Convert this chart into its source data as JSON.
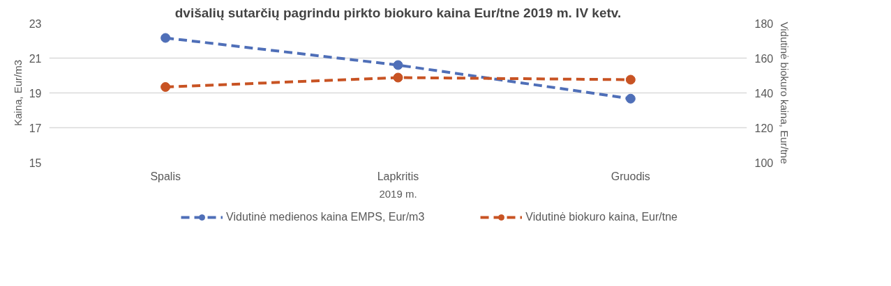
{
  "chart_data": {
    "type": "line",
    "title": "dvišalių sutarčių pagrindu pirkto biokuro kaina Eur/tne 2019 m. IV ketv.",
    "categories": [
      "Spalis",
      "Lapkritis",
      "Gruodis"
    ],
    "xlabel": "2019 m.",
    "ylabel": "Kaina, Eur/m3",
    "y2label": "Vidutinė biokuro kaina, Eur/tne",
    "series": [
      {
        "name": "Vidutinė medienos kaina EMPS, Eur/m3",
        "color": "#4f6fb8",
        "values": [
          22.16,
          20.6,
          18.67
        ]
      },
      {
        "name": "Vidutinė biokuro kaina, Eur/tne",
        "color": "#c85323",
        "values": [
          143.4,
          148.8,
          147.6
        ],
        "axis": "y2"
      }
    ],
    "ylim": [
      15,
      23
    ],
    "yticks": [
      15,
      17,
      19,
      21,
      23
    ],
    "y2lim": [
      100,
      180
    ],
    "y2ticks": [
      100,
      120,
      140,
      160,
      180
    ],
    "grid": "y",
    "legend": "bottom",
    "marker": "circle",
    "line_style": "dashed"
  }
}
